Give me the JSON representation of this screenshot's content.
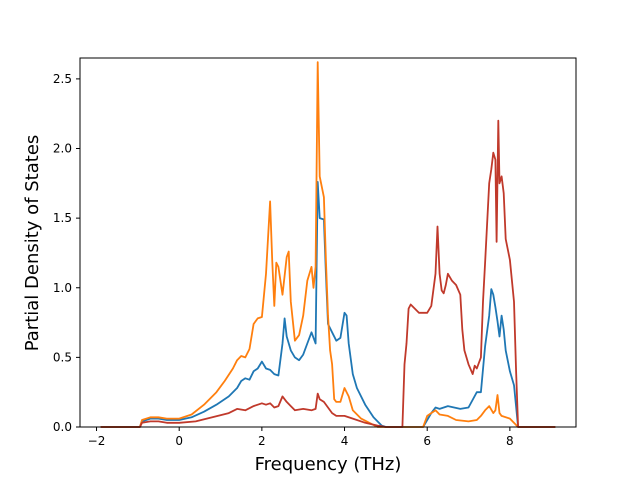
{
  "chart_data": {
    "type": "line",
    "title": "",
    "xlabel": "Frequency (THz)",
    "ylabel": "Partial Density of States",
    "xlim": [
      -2.4,
      9.6
    ],
    "ylim": [
      0.0,
      2.65
    ],
    "xticks": [
      -2,
      0,
      2,
      4,
      6,
      8
    ],
    "yticks": [
      0.0,
      0.5,
      1.0,
      1.5,
      2.0,
      2.5
    ],
    "xtick_labels": [
      "−2",
      "0",
      "2",
      "4",
      "6",
      "8"
    ],
    "ytick_labels": [
      "0.0",
      "0.5",
      "1.0",
      "1.5",
      "2.0",
      "2.5"
    ],
    "grid": false,
    "legend": "none",
    "series": [
      {
        "color": "#1f77b4",
        "points": [
          [
            -1.9,
            0.0
          ],
          [
            -0.95,
            0.0
          ],
          [
            -0.9,
            0.04
          ],
          [
            -0.7,
            0.06
          ],
          [
            -0.5,
            0.06
          ],
          [
            -0.3,
            0.05
          ],
          [
            0.0,
            0.05
          ],
          [
            0.3,
            0.07
          ],
          [
            0.6,
            0.11
          ],
          [
            0.9,
            0.16
          ],
          [
            1.2,
            0.22
          ],
          [
            1.4,
            0.28
          ],
          [
            1.5,
            0.33
          ],
          [
            1.6,
            0.35
          ],
          [
            1.7,
            0.34
          ],
          [
            1.8,
            0.4
          ],
          [
            1.9,
            0.42
          ],
          [
            2.0,
            0.47
          ],
          [
            2.1,
            0.42
          ],
          [
            2.2,
            0.41
          ],
          [
            2.3,
            0.38
          ],
          [
            2.4,
            0.37
          ],
          [
            2.5,
            0.6
          ],
          [
            2.55,
            0.78
          ],
          [
            2.6,
            0.65
          ],
          [
            2.7,
            0.55
          ],
          [
            2.8,
            0.5
          ],
          [
            2.9,
            0.48
          ],
          [
            3.0,
            0.52
          ],
          [
            3.1,
            0.6
          ],
          [
            3.2,
            0.68
          ],
          [
            3.3,
            0.6
          ],
          [
            3.35,
            1.76
          ],
          [
            3.4,
            1.5
          ],
          [
            3.5,
            1.49
          ],
          [
            3.55,
            1.1
          ],
          [
            3.6,
            0.74
          ],
          [
            3.7,
            0.68
          ],
          [
            3.8,
            0.62
          ],
          [
            3.9,
            0.64
          ],
          [
            4.0,
            0.82
          ],
          [
            4.05,
            0.8
          ],
          [
            4.1,
            0.6
          ],
          [
            4.2,
            0.38
          ],
          [
            4.3,
            0.28
          ],
          [
            4.5,
            0.16
          ],
          [
            4.7,
            0.07
          ],
          [
            4.9,
            0.01
          ],
          [
            5.0,
            0.0
          ],
          [
            5.9,
            0.0
          ],
          [
            6.1,
            0.1
          ],
          [
            6.2,
            0.14
          ],
          [
            6.3,
            0.13
          ],
          [
            6.5,
            0.15
          ],
          [
            6.8,
            0.13
          ],
          [
            7.0,
            0.14
          ],
          [
            7.2,
            0.25
          ],
          [
            7.3,
            0.25
          ],
          [
            7.4,
            0.58
          ],
          [
            7.5,
            0.8
          ],
          [
            7.55,
            0.99
          ],
          [
            7.6,
            0.95
          ],
          [
            7.65,
            0.86
          ],
          [
            7.7,
            0.76
          ],
          [
            7.75,
            0.65
          ],
          [
            7.8,
            0.8
          ],
          [
            7.85,
            0.7
          ],
          [
            7.9,
            0.55
          ],
          [
            8.0,
            0.4
          ],
          [
            8.1,
            0.3
          ],
          [
            8.2,
            0.0
          ],
          [
            9.1,
            0.0
          ]
        ]
      },
      {
        "color": "#ff7f0e",
        "points": [
          [
            -1.9,
            0.0
          ],
          [
            -0.95,
            0.0
          ],
          [
            -0.9,
            0.05
          ],
          [
            -0.7,
            0.07
          ],
          [
            -0.5,
            0.07
          ],
          [
            -0.3,
            0.06
          ],
          [
            0.0,
            0.06
          ],
          [
            0.3,
            0.09
          ],
          [
            0.6,
            0.16
          ],
          [
            0.9,
            0.25
          ],
          [
            1.1,
            0.33
          ],
          [
            1.3,
            0.42
          ],
          [
            1.4,
            0.48
          ],
          [
            1.5,
            0.51
          ],
          [
            1.6,
            0.5
          ],
          [
            1.7,
            0.56
          ],
          [
            1.8,
            0.74
          ],
          [
            1.9,
            0.78
          ],
          [
            2.0,
            0.79
          ],
          [
            2.1,
            1.1
          ],
          [
            2.2,
            1.62
          ],
          [
            2.25,
            1.2
          ],
          [
            2.3,
            0.87
          ],
          [
            2.35,
            1.18
          ],
          [
            2.4,
            1.15
          ],
          [
            2.5,
            0.95
          ],
          [
            2.6,
            1.22
          ],
          [
            2.65,
            1.26
          ],
          [
            2.7,
            0.9
          ],
          [
            2.8,
            0.62
          ],
          [
            2.9,
            0.66
          ],
          [
            3.0,
            0.8
          ],
          [
            3.1,
            1.05
          ],
          [
            3.2,
            1.15
          ],
          [
            3.25,
            1.0
          ],
          [
            3.3,
            1.15
          ],
          [
            3.35,
            2.62
          ],
          [
            3.4,
            1.8
          ],
          [
            3.5,
            1.65
          ],
          [
            3.55,
            1.2
          ],
          [
            3.6,
            0.8
          ],
          [
            3.65,
            0.55
          ],
          [
            3.7,
            0.45
          ],
          [
            3.75,
            0.2
          ],
          [
            3.8,
            0.18
          ],
          [
            3.9,
            0.18
          ],
          [
            4.0,
            0.28
          ],
          [
            4.1,
            0.22
          ],
          [
            4.2,
            0.12
          ],
          [
            4.4,
            0.06
          ],
          [
            4.6,
            0.03
          ],
          [
            4.8,
            0.0
          ],
          [
            5.9,
            0.0
          ],
          [
            6.0,
            0.08
          ],
          [
            6.2,
            0.12
          ],
          [
            6.3,
            0.09
          ],
          [
            6.5,
            0.08
          ],
          [
            6.7,
            0.05
          ],
          [
            7.0,
            0.04
          ],
          [
            7.2,
            0.05
          ],
          [
            7.3,
            0.08
          ],
          [
            7.4,
            0.12
          ],
          [
            7.5,
            0.15
          ],
          [
            7.6,
            0.1
          ],
          [
            7.65,
            0.12
          ],
          [
            7.7,
            0.23
          ],
          [
            7.75,
            0.1
          ],
          [
            7.8,
            0.08
          ],
          [
            8.0,
            0.06
          ],
          [
            8.2,
            0.0
          ],
          [
            9.1,
            0.0
          ]
        ]
      },
      {
        "color": "#c0392b",
        "points": [
          [
            -1.9,
            0.0
          ],
          [
            -0.95,
            0.0
          ],
          [
            -0.9,
            0.03
          ],
          [
            -0.7,
            0.04
          ],
          [
            -0.5,
            0.04
          ],
          [
            -0.3,
            0.03
          ],
          [
            0.0,
            0.03
          ],
          [
            0.4,
            0.04
          ],
          [
            0.8,
            0.07
          ],
          [
            1.2,
            0.1
          ],
          [
            1.4,
            0.13
          ],
          [
            1.6,
            0.12
          ],
          [
            1.8,
            0.15
          ],
          [
            2.0,
            0.17
          ],
          [
            2.1,
            0.16
          ],
          [
            2.2,
            0.17
          ],
          [
            2.3,
            0.14
          ],
          [
            2.4,
            0.15
          ],
          [
            2.5,
            0.22
          ],
          [
            2.6,
            0.18
          ],
          [
            2.7,
            0.15
          ],
          [
            2.8,
            0.12
          ],
          [
            3.0,
            0.13
          ],
          [
            3.2,
            0.12
          ],
          [
            3.3,
            0.13
          ],
          [
            3.35,
            0.24
          ],
          [
            3.4,
            0.2
          ],
          [
            3.5,
            0.18
          ],
          [
            3.6,
            0.14
          ],
          [
            3.7,
            0.1
          ],
          [
            3.8,
            0.08
          ],
          [
            4.0,
            0.08
          ],
          [
            4.2,
            0.06
          ],
          [
            4.5,
            0.03
          ],
          [
            4.8,
            0.01
          ],
          [
            5.0,
            0.0
          ],
          [
            5.4,
            0.0
          ],
          [
            5.45,
            0.45
          ],
          [
            5.5,
            0.6
          ],
          [
            5.55,
            0.85
          ],
          [
            5.6,
            0.88
          ],
          [
            5.7,
            0.85
          ],
          [
            5.8,
            0.82
          ],
          [
            6.0,
            0.82
          ],
          [
            6.1,
            0.87
          ],
          [
            6.2,
            1.1
          ],
          [
            6.25,
            1.44
          ],
          [
            6.3,
            1.1
          ],
          [
            6.35,
            0.98
          ],
          [
            6.4,
            0.96
          ],
          [
            6.45,
            1.02
          ],
          [
            6.5,
            1.1
          ],
          [
            6.6,
            1.05
          ],
          [
            6.7,
            1.02
          ],
          [
            6.8,
            0.95
          ],
          [
            6.85,
            0.7
          ],
          [
            6.9,
            0.55
          ],
          [
            7.0,
            0.45
          ],
          [
            7.1,
            0.38
          ],
          [
            7.15,
            0.44
          ],
          [
            7.2,
            0.42
          ],
          [
            7.3,
            0.5
          ],
          [
            7.35,
            0.9
          ],
          [
            7.4,
            1.18
          ],
          [
            7.5,
            1.75
          ],
          [
            7.55,
            1.85
          ],
          [
            7.6,
            1.97
          ],
          [
            7.65,
            1.92
          ],
          [
            7.68,
            1.33
          ],
          [
            7.72,
            2.2
          ],
          [
            7.75,
            1.75
          ],
          [
            7.8,
            1.8
          ],
          [
            7.85,
            1.68
          ],
          [
            7.9,
            1.35
          ],
          [
            8.0,
            1.2
          ],
          [
            8.1,
            0.9
          ],
          [
            8.15,
            0.4
          ],
          [
            8.2,
            0.0
          ],
          [
            9.1,
            0.0
          ]
        ]
      }
    ]
  }
}
